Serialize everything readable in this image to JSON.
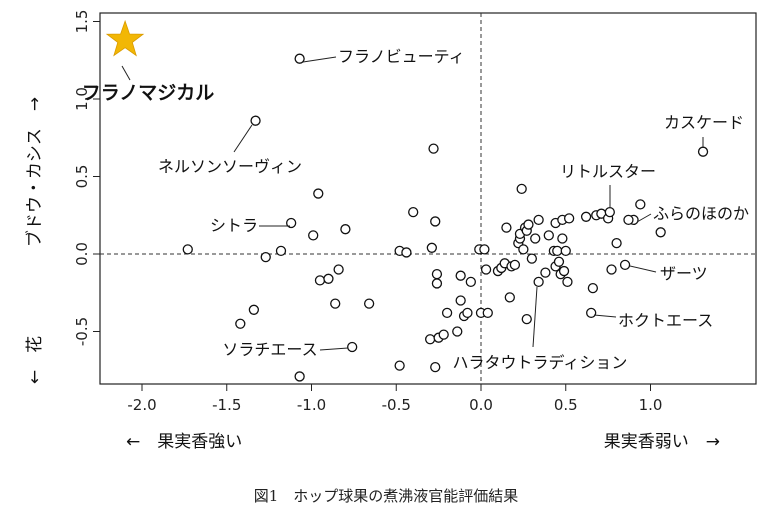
{
  "chart_data": {
    "type": "scatter",
    "caption": "図1　ホップ球果の煮沸液官能評価結果",
    "xlabel_left": "←　果実香強い",
    "xlabel_right": "果実香弱い　→",
    "ylabel_bottom": "←　花",
    "ylabel_top": "ブドウ・カシス　→",
    "xlim": [
      -2.3,
      1.55
    ],
    "ylim": [
      -0.85,
      1.55
    ],
    "x_ticks": [
      -2.0,
      -1.5,
      -1.0,
      -0.5,
      0.0,
      0.5,
      1.0
    ],
    "x_tick_labels": [
      "-2.0",
      "-1.5",
      "-1.0",
      "-0.5",
      "0.0",
      "0.5",
      "1.0"
    ],
    "y_ticks": [
      -0.5,
      0.0,
      0.5,
      1.0,
      1.5
    ],
    "y_tick_labels": [
      "-0.5",
      "0.0",
      "0.5",
      "1.0",
      "1.5"
    ],
    "reference_lines": {
      "x": 0,
      "y": 0,
      "style": "dashed"
    },
    "highlight": {
      "name": "フラノマジカル",
      "x": -2.1,
      "y": 1.38,
      "marker": "star",
      "color": "#F2B705"
    },
    "labeled_points": [
      {
        "name": "フラノビューティ",
        "x": -1.07,
        "y": 1.26
      },
      {
        "name": "ネルソンソーヴィン",
        "x": -1.33,
        "y": 0.86
      },
      {
        "name": "シトラ",
        "x": -1.12,
        "y": 0.2
      },
      {
        "name": "ソラチエース",
        "x": -0.76,
        "y": -0.6
      },
      {
        "name": "カスケード",
        "x": 1.31,
        "y": 0.66
      },
      {
        "name": "リトルスター",
        "x": 0.76,
        "y": 0.27
      },
      {
        "name": "ふらのほのか",
        "x": 0.87,
        "y": 0.22
      },
      {
        "name": "ザーツ",
        "x": 0.85,
        "y": -0.07
      },
      {
        "name": "ホクトエース",
        "x": 0.65,
        "y": -0.38
      },
      {
        "name": "ハラタウトラディション",
        "x": 0.34,
        "y": -0.18
      }
    ],
    "points": [
      [
        -1.73,
        0.03
      ],
      [
        -1.42,
        -0.45
      ],
      [
        -1.34,
        -0.36
      ],
      [
        -1.27,
        -0.02
      ],
      [
        -1.18,
        0.02
      ],
      [
        -1.07,
        -0.79
      ],
      [
        -0.99,
        0.12
      ],
      [
        -0.96,
        0.39
      ],
      [
        -0.95,
        -0.17
      ],
      [
        -0.9,
        -0.16
      ],
      [
        -0.86,
        -0.32
      ],
      [
        -0.84,
        -0.1
      ],
      [
        -0.8,
        0.16
      ],
      [
        -0.66,
        -0.32
      ],
      [
        -0.48,
        0.02
      ],
      [
        -0.48,
        -0.72
      ],
      [
        -0.44,
        0.01
      ],
      [
        -0.4,
        0.27
      ],
      [
        -0.3,
        -0.55
      ],
      [
        -0.29,
        0.04
      ],
      [
        -0.28,
        0.68
      ],
      [
        -0.27,
        0.21
      ],
      [
        -0.27,
        -0.73
      ],
      [
        -0.26,
        -0.13
      ],
      [
        -0.26,
        -0.19
      ],
      [
        -0.25,
        -0.54
      ],
      [
        -0.22,
        -0.52
      ],
      [
        -0.2,
        -0.38
      ],
      [
        -0.14,
        -0.5
      ],
      [
        -0.12,
        -0.14
      ],
      [
        -0.12,
        -0.3
      ],
      [
        -0.1,
        -0.4
      ],
      [
        -0.08,
        -0.38
      ],
      [
        -0.06,
        -0.18
      ],
      [
        -0.01,
        0.03
      ],
      [
        0.0,
        -0.38
      ],
      [
        0.02,
        0.03
      ],
      [
        0.03,
        -0.1
      ],
      [
        0.04,
        -0.38
      ],
      [
        0.1,
        -0.11
      ],
      [
        0.12,
        -0.09
      ],
      [
        0.14,
        -0.06
      ],
      [
        0.15,
        0.17
      ],
      [
        0.17,
        -0.28
      ],
      [
        0.18,
        -0.08
      ],
      [
        0.2,
        -0.07
      ],
      [
        0.22,
        0.07
      ],
      [
        0.23,
        0.1
      ],
      [
        0.23,
        0.13
      ],
      [
        0.24,
        0.42
      ],
      [
        0.25,
        0.03
      ],
      [
        0.26,
        0.17
      ],
      [
        0.27,
        0.15
      ],
      [
        0.27,
        -0.42
      ],
      [
        0.28,
        0.19
      ],
      [
        0.3,
        -0.03
      ],
      [
        0.32,
        0.1
      ],
      [
        0.34,
        0.22
      ],
      [
        0.38,
        -0.12
      ],
      [
        0.4,
        0.12
      ],
      [
        0.43,
        0.02
      ],
      [
        0.44,
        0.2
      ],
      [
        0.44,
        -0.08
      ],
      [
        0.45,
        0.02
      ],
      [
        0.46,
        -0.05
      ],
      [
        0.47,
        -0.13
      ],
      [
        0.48,
        0.22
      ],
      [
        0.48,
        0.1
      ],
      [
        0.49,
        -0.11
      ],
      [
        0.5,
        0.02
      ],
      [
        0.51,
        -0.18
      ],
      [
        0.52,
        0.23
      ],
      [
        0.62,
        0.24
      ],
      [
        0.66,
        -0.22
      ],
      [
        0.68,
        0.25
      ],
      [
        0.71,
        0.26
      ],
      [
        0.75,
        0.23
      ],
      [
        0.77,
        -0.1
      ],
      [
        0.8,
        0.07
      ],
      [
        0.9,
        0.22
      ],
      [
        0.94,
        0.32
      ],
      [
        1.06,
        0.14
      ]
    ]
  }
}
